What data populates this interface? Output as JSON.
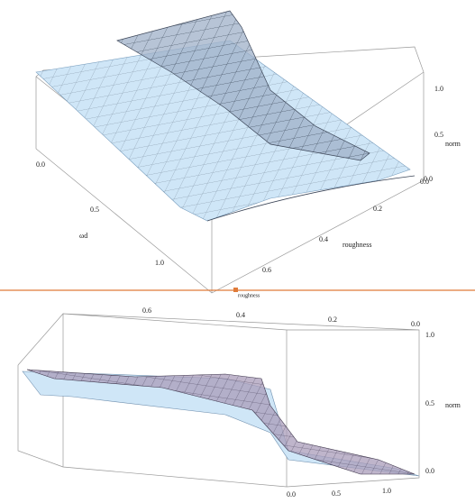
{
  "plots": [
    {
      "axes": {
        "wd": {
          "label": "ωd",
          "ticks": [
            "0.0",
            "0.5",
            "1.0"
          ]
        },
        "roughness": {
          "label": "roughness",
          "ticks": [
            "0.0",
            "0.2",
            "0.4",
            "0.6"
          ]
        },
        "norm": {
          "label": "norm",
          "ticks": [
            "0.0",
            "0.5",
            "1.0"
          ]
        }
      },
      "caption": "roughness"
    },
    {
      "axes": {
        "roughness": {
          "ticks": [
            "0.6",
            "0.4",
            "0.2",
            "0.0"
          ]
        },
        "wd": {
          "ticks": [
            "0.0",
            "0.5",
            "1.0"
          ]
        },
        "norm": {
          "label": "norm",
          "ticks": [
            "1.0",
            "0.5",
            "0.0"
          ]
        }
      }
    }
  ]
}
